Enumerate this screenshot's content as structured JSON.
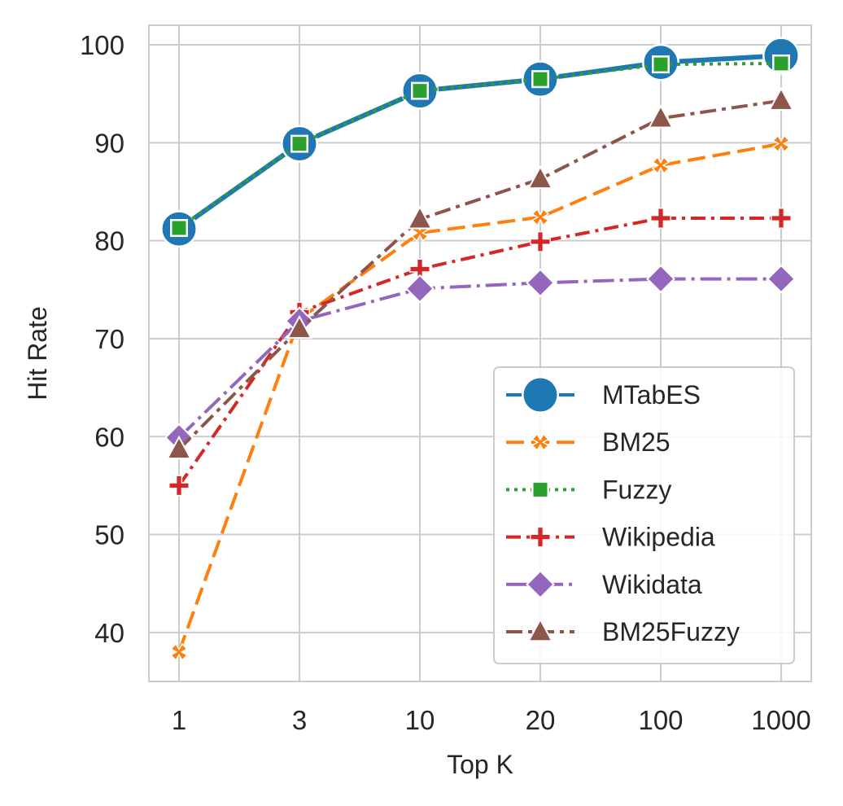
{
  "chart_data": {
    "type": "line",
    "xlabel": "Top K",
    "ylabel": "Hit Rate",
    "categories": [
      "1",
      "3",
      "10",
      "20",
      "100",
      "1000"
    ],
    "ylim": [
      35,
      102
    ],
    "yticks": [
      40,
      50,
      60,
      70,
      80,
      90,
      100
    ],
    "grid": true,
    "legend_position": "lower-right",
    "series": [
      {
        "name": "MTabES",
        "color": "#1f77b4",
        "marker": "circle",
        "dash": "solid",
        "values": [
          81.2,
          89.9,
          95.3,
          96.5,
          98.2,
          98.9
        ]
      },
      {
        "name": "BM25",
        "color": "#ff7f0e",
        "marker": "x",
        "dash": "dashed",
        "values": [
          38.0,
          72.0,
          80.8,
          82.4,
          87.7,
          89.9
        ]
      },
      {
        "name": "Fuzzy",
        "color": "#2ca02c",
        "marker": "square",
        "dash": "dotted",
        "values": [
          81.3,
          89.9,
          95.3,
          96.5,
          98.0,
          98.1
        ]
      },
      {
        "name": "Wikipedia",
        "color": "#d62728",
        "marker": "plus",
        "dash": "dashdot",
        "values": [
          55.0,
          72.7,
          77.1,
          79.9,
          82.3,
          82.3
        ]
      },
      {
        "name": "Wikidata",
        "color": "#9467bd",
        "marker": "diamond",
        "dash": "dashdot2",
        "values": [
          59.9,
          71.8,
          75.1,
          75.7,
          76.1,
          76.1
        ]
      },
      {
        "name": "BM25Fuzzy",
        "color": "#8c564b",
        "marker": "triangle",
        "dash": "dashdot3",
        "values": [
          58.7,
          71.0,
          82.2,
          86.3,
          92.5,
          94.3
        ]
      }
    ]
  }
}
